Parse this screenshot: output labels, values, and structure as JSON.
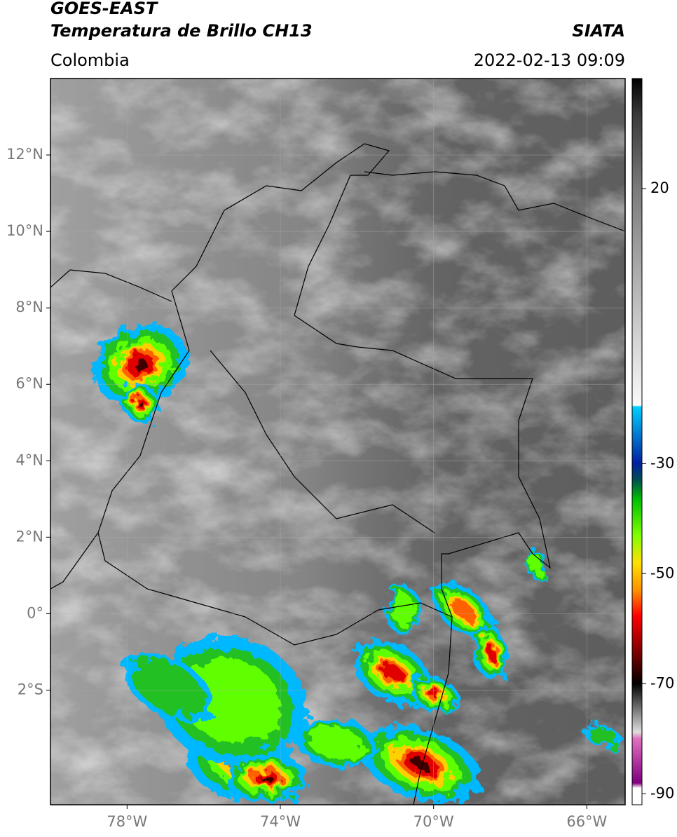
{
  "header": {
    "title": "GOES-EAST",
    "subtitle": "Temperatura de Brillo CH13",
    "source": "SIATA",
    "region": "Colombia",
    "datetime": "2022-02-13 09:09"
  },
  "map": {
    "xlim": [
      -80,
      -65
    ],
    "ylim": [
      -5,
      14
    ],
    "yticks": [
      {
        "value": 12,
        "label": "12°N"
      },
      {
        "value": 10,
        "label": "10°N"
      },
      {
        "value": 8,
        "label": "8°N"
      },
      {
        "value": 6,
        "label": "6°N"
      },
      {
        "value": 4,
        "label": "4°N"
      },
      {
        "value": 2,
        "label": "2°N"
      },
      {
        "value": 0,
        "label": "0°"
      },
      {
        "value": -2,
        "label": "2°S"
      }
    ],
    "xticks": [
      {
        "value": -78,
        "label": "78°W"
      },
      {
        "value": -74,
        "label": "74°W"
      },
      {
        "value": -70,
        "label": "70°W"
      },
      {
        "value": -66,
        "label": "66°W"
      }
    ]
  },
  "colorbar": {
    "lim": [
      -92,
      40
    ],
    "ticks": [
      20,
      -30,
      -50,
      -70,
      -90
    ]
  }
}
